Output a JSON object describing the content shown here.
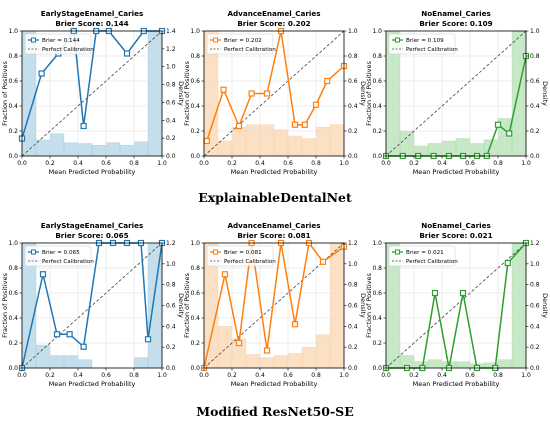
{
  "rows": [
    {
      "label": "ExplainableDentalNet"
    },
    {
      "label": "Modified ResNet50-SE"
    }
  ],
  "axis_text": {
    "xlabel": "Mean Predicted Probability",
    "ylabel_left": "Fraction of Positives",
    "ylabel_right": "Density",
    "calibration_legend": "Perfect Calibration"
  },
  "chart_data": [
    {
      "type": "line",
      "row": 0,
      "col": 0,
      "title": "EarlyStageEnamel_Caries",
      "subtitle": "Brier Score: 0.144",
      "legend": [
        "Brier = 0.144",
        "Perfect Calibration"
      ],
      "color": "#1f77b4",
      "fill": "#a6cde2",
      "xlim": [
        0,
        1
      ],
      "ylim": [
        0,
        1
      ],
      "density_lim": [
        0,
        1.4
      ],
      "xticks": [
        "0.0",
        "0.2",
        "0.4",
        "0.6",
        "0.8",
        "1.0"
      ],
      "yticks": [
        "0.0",
        "0.2",
        "0.4",
        "0.6",
        "0.8",
        "1.0"
      ],
      "density_ticks": [
        "0.0",
        "0.2",
        "0.4",
        "0.6",
        "0.8",
        "1.0",
        "1.2",
        "1.4"
      ],
      "x": [
        0.0,
        0.14,
        0.26,
        0.37,
        0.44,
        0.53,
        0.62,
        0.75,
        0.87,
        1.0
      ],
      "y": [
        0.14,
        0.66,
        0.82,
        1.0,
        0.24,
        1.0,
        1.0,
        0.82,
        1.0,
        1.0
      ],
      "density": [
        1.4,
        0.18,
        0.25,
        0.15,
        0.14,
        0.12,
        0.15,
        0.12,
        0.16,
        1.4
      ]
    },
    {
      "type": "line",
      "row": 0,
      "col": 1,
      "title": "AdvanceEnamel_Caries",
      "subtitle": "Brier Score: 0.202",
      "legend": [
        "Brier = 0.202",
        "Perfect Calibration"
      ],
      "color": "#ff7f0e",
      "fill": "#f9cfa5",
      "xlim": [
        0,
        1
      ],
      "ylim": [
        0,
        1
      ],
      "density_lim": [
        0,
        1.0
      ],
      "xticks": [
        "0.0",
        "0.2",
        "0.4",
        "0.6",
        "0.8",
        "1.0"
      ],
      "yticks": [
        "0.0",
        "0.2",
        "0.4",
        "0.6",
        "0.8",
        "1.0"
      ],
      "density_ticks": [
        "0.0",
        "0.2",
        "0.4",
        "0.6",
        "0.8",
        "1.0"
      ],
      "x": [
        0.02,
        0.14,
        0.25,
        0.34,
        0.45,
        0.55,
        0.65,
        0.72,
        0.8,
        0.88,
        1.0
      ],
      "y": [
        0.12,
        0.53,
        0.24,
        0.5,
        0.5,
        1.0,
        0.25,
        0.25,
        0.41,
        0.6,
        0.72
      ],
      "density": [
        1.0,
        0.12,
        0.23,
        0.25,
        0.25,
        0.21,
        0.16,
        0.14,
        0.23,
        0.25
      ]
    },
    {
      "type": "line",
      "row": 0,
      "col": 2,
      "title": "NoEnamel_Caries",
      "subtitle": "Brier Score: 0.109",
      "legend": [
        "Brier = 0.109",
        "Perfect Calibration"
      ],
      "color": "#2ca02c",
      "fill": "#a8dba8",
      "xlim": [
        0,
        1
      ],
      "ylim": [
        0,
        1
      ],
      "density_lim": [
        0,
        1.0
      ],
      "xticks": [
        "0.0",
        "0.2",
        "0.4",
        "0.6",
        "0.8",
        "1.0"
      ],
      "yticks": [
        "0.0",
        "0.2",
        "0.4",
        "0.6",
        "0.8",
        "1.0"
      ],
      "density_ticks": [
        "0.0",
        "0.2",
        "0.4",
        "0.6",
        "0.8",
        "1.0"
      ],
      "x": [
        0.0,
        0.12,
        0.23,
        0.34,
        0.45,
        0.55,
        0.65,
        0.72,
        0.8,
        0.88,
        1.0
      ],
      "y": [
        0.0,
        0.0,
        0.0,
        0.0,
        0.0,
        0.0,
        0.0,
        0.0,
        0.25,
        0.18,
        0.8
      ],
      "density": [
        1.0,
        0.2,
        0.08,
        0.1,
        0.12,
        0.14,
        0.1,
        0.13,
        0.3,
        1.0
      ]
    },
    {
      "type": "line",
      "row": 1,
      "col": 0,
      "title": "EarlyStageEnamel_Caries",
      "subtitle": "Brier Score: 0.065",
      "legend": [
        "Brier = 0.065",
        "Perfect Calibration"
      ],
      "color": "#1f77b4",
      "fill": "#a6cde2",
      "xlim": [
        0,
        1
      ],
      "ylim": [
        0,
        1
      ],
      "density_lim": [
        0,
        1.2
      ],
      "xticks": [
        "0.0",
        "0.2",
        "0.4",
        "0.6",
        "0.8",
        "1.0"
      ],
      "yticks": [
        "0.0",
        "0.2",
        "0.4",
        "0.6",
        "0.8",
        "1.0"
      ],
      "density_ticks": [
        "0.0",
        "0.2",
        "0.4",
        "0.6",
        "0.8",
        "1.0",
        "1.2"
      ],
      "x": [
        0.0,
        0.15,
        0.25,
        0.34,
        0.44,
        0.55,
        0.65,
        0.75,
        0.85,
        0.9,
        1.0
      ],
      "y": [
        0.0,
        0.75,
        0.27,
        0.27,
        0.17,
        1.0,
        1.0,
        1.0,
        1.0,
        0.23,
        1.0
      ],
      "density": [
        1.2,
        0.22,
        0.12,
        0.12,
        0.08,
        0.0,
        0.0,
        0.0,
        0.1,
        1.2
      ]
    },
    {
      "type": "line",
      "row": 1,
      "col": 1,
      "title": "AdvanceEnamel_Caries",
      "subtitle": "Brier Score: 0.081",
      "legend": [
        "Brier = 0.081",
        "Perfect Calibration"
      ],
      "color": "#ff7f0e",
      "fill": "#f9cfa5",
      "xlim": [
        0,
        1
      ],
      "ylim": [
        0,
        1
      ],
      "density_lim": [
        0,
        1.2
      ],
      "xticks": [
        "0.0",
        "0.2",
        "0.4",
        "0.6",
        "0.8",
        "1.0"
      ],
      "yticks": [
        "0.0",
        "0.2",
        "0.4",
        "0.6",
        "0.8",
        "1.0"
      ],
      "density_ticks": [
        "0.0",
        "0.2",
        "0.4",
        "0.6",
        "0.8",
        "1.0",
        "1.2"
      ],
      "x": [
        0.0,
        0.15,
        0.25,
        0.34,
        0.45,
        0.55,
        0.65,
        0.75,
        0.85,
        1.0
      ],
      "y": [
        0.0,
        0.75,
        0.2,
        1.0,
        0.14,
        1.0,
        0.35,
        1.0,
        0.85,
        0.97
      ],
      "density": [
        1.2,
        0.4,
        0.28,
        0.13,
        0.1,
        0.12,
        0.14,
        0.2,
        0.32,
        1.2
      ]
    },
    {
      "type": "line",
      "row": 1,
      "col": 2,
      "title": "NoEnamel_Caries",
      "subtitle": "Brier Score: 0.021",
      "legend": [
        "Brier = 0.021",
        "Perfect Calibration"
      ],
      "color": "#2ca02c",
      "fill": "#a8dba8",
      "xlim": [
        0,
        1
      ],
      "ylim": [
        0,
        1
      ],
      "density_lim": [
        0,
        1.2
      ],
      "xticks": [
        "0.0",
        "0.2",
        "0.4",
        "0.6",
        "0.8",
        "1.0"
      ],
      "yticks": [
        "0.0",
        "0.2",
        "0.4",
        "0.6",
        "0.8",
        "1.0"
      ],
      "density_ticks": [
        "0.0",
        "0.2",
        "0.4",
        "0.6",
        "0.8",
        "1.0",
        "1.2"
      ],
      "x": [
        0.0,
        0.15,
        0.26,
        0.35,
        0.45,
        0.55,
        0.65,
        0.78,
        0.87,
        1.0
      ],
      "y": [
        0.0,
        0.0,
        0.0,
        0.6,
        0.0,
        0.6,
        0.0,
        0.0,
        0.84,
        1.0
      ],
      "density": [
        1.2,
        0.12,
        0.06,
        0.08,
        0.06,
        0.06,
        0.04,
        0.05,
        0.08,
        1.2
      ]
    }
  ]
}
